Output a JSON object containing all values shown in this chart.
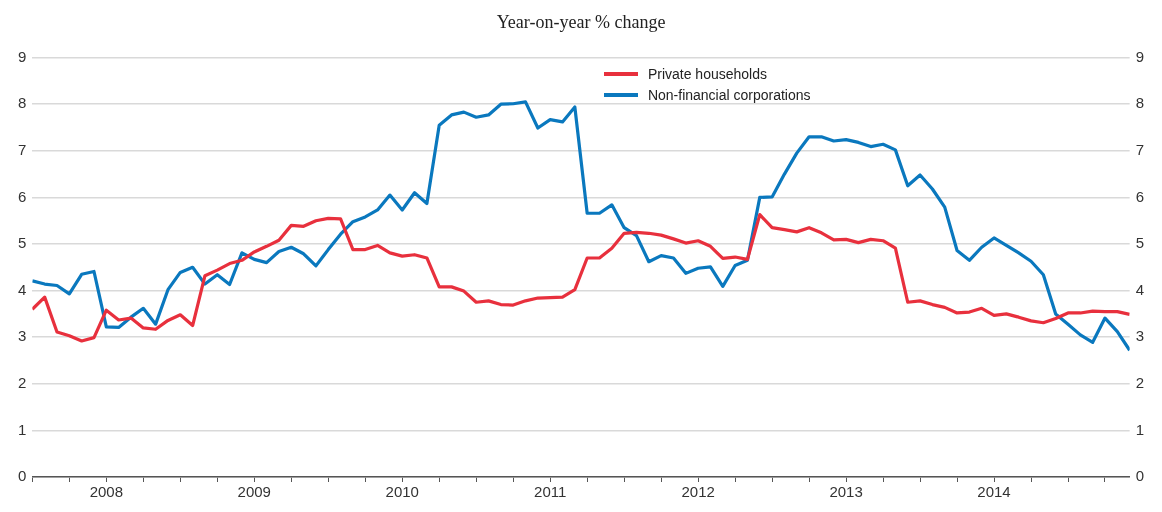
{
  "chart_data": {
    "type": "line",
    "title": "Year-on-year % change",
    "x": [
      "2008-01",
      "2008-02",
      "2008-03",
      "2008-04",
      "2008-05",
      "2008-06",
      "2008-07",
      "2008-08",
      "2008-09",
      "2008-10",
      "2008-11",
      "2008-12",
      "2009-01",
      "2009-02",
      "2009-03",
      "2009-04",
      "2009-05",
      "2009-06",
      "2009-07",
      "2009-08",
      "2009-09",
      "2009-10",
      "2009-11",
      "2009-12",
      "2010-01",
      "2010-02",
      "2010-03",
      "2010-04",
      "2010-05",
      "2010-06",
      "2010-07",
      "2010-08",
      "2010-09",
      "2010-10",
      "2010-11",
      "2010-12",
      "2011-01",
      "2011-02",
      "2011-03",
      "2011-04",
      "2011-05",
      "2011-06",
      "2011-07",
      "2011-08",
      "2011-09",
      "2011-10",
      "2011-11",
      "2011-12",
      "2012-01",
      "2012-02",
      "2012-03",
      "2012-04",
      "2012-05",
      "2012-06",
      "2012-07",
      "2012-08",
      "2012-09",
      "2012-10",
      "2012-11",
      "2012-12",
      "2013-01",
      "2013-02",
      "2013-03",
      "2013-04",
      "2013-05",
      "2013-06",
      "2013-07",
      "2013-08",
      "2013-09",
      "2013-10",
      "2013-11",
      "2013-12",
      "2014-01",
      "2014-02",
      "2014-03",
      "2014-04",
      "2014-05",
      "2014-06",
      "2014-07",
      "2014-08",
      "2014-09",
      "2014-10",
      "2014-11",
      "2014-12",
      "2015-01",
      "2015-02",
      "2015-03",
      "2015-04",
      "2015-05",
      "2015-06"
    ],
    "series": [
      {
        "name": "Private households",
        "color": "#e8303d",
        "values": [
          3.6,
          3.86,
          3.11,
          3.03,
          2.92,
          2.99,
          3.58,
          3.37,
          3.41,
          3.2,
          3.17,
          3.36,
          3.48,
          3.25,
          4.32,
          4.44,
          4.58,
          4.65,
          4.83,
          4.95,
          5.08,
          5.4,
          5.38,
          5.5,
          5.55,
          5.54,
          4.88,
          4.88,
          4.97,
          4.81,
          4.74,
          4.77,
          4.7,
          4.08,
          4.08,
          3.99,
          3.75,
          3.78,
          3.7,
          3.69,
          3.78,
          3.84,
          3.85,
          3.86,
          4.02,
          4.7,
          4.7,
          4.91,
          5.23,
          5.25,
          5.23,
          5.19,
          5.11,
          5.02,
          5.07,
          4.95,
          4.69,
          4.72,
          4.67,
          5.63,
          5.35,
          5.31,
          5.26,
          5.35,
          5.24,
          5.09,
          5.1,
          5.03,
          5.1,
          5.07,
          4.91,
          3.75,
          3.78,
          3.7,
          3.64,
          3.52,
          3.54,
          3.62,
          3.47,
          3.5,
          3.43,
          3.35,
          3.31,
          3.4,
          3.52,
          3.52,
          3.56,
          3.55,
          3.55,
          3.49
        ]
      },
      {
        "name": "Non-financial corporations",
        "color": "#0a78be",
        "values": [
          4.21,
          4.14,
          4.11,
          3.93,
          4.35,
          4.41,
          3.22,
          3.21,
          3.43,
          3.62,
          3.28,
          4.02,
          4.39,
          4.5,
          4.14,
          4.34,
          4.13,
          4.81,
          4.67,
          4.6,
          4.84,
          4.93,
          4.79,
          4.53,
          4.88,
          5.21,
          5.48,
          5.58,
          5.73,
          6.05,
          5.73,
          6.1,
          5.87,
          7.55,
          7.77,
          7.83,
          7.72,
          7.77,
          8.0,
          8.01,
          8.05,
          7.49,
          7.67,
          7.62,
          7.94,
          5.66,
          5.66,
          5.84,
          5.35,
          5.18,
          4.62,
          4.75,
          4.7,
          4.37,
          4.48,
          4.51,
          4.09,
          4.54,
          4.65,
          6.0,
          6.01,
          6.5,
          6.95,
          7.3,
          7.3,
          7.21,
          7.24,
          7.18,
          7.09,
          7.14,
          7.02,
          6.25,
          6.48,
          6.18,
          5.79,
          4.86,
          4.65,
          4.93,
          5.13,
          4.97,
          4.81,
          4.63,
          4.34,
          3.5,
          3.28,
          3.05,
          2.89,
          3.41,
          3.12,
          2.72
        ]
      }
    ],
    "xlim": [
      "2008-01",
      "2015-06"
    ],
    "xticks": [
      {
        "value": "2008-01",
        "label": null
      },
      {
        "value": "2008-04",
        "label": null
      },
      {
        "value": "2008-07",
        "label": "2008"
      },
      {
        "value": "2008-10",
        "label": null
      },
      {
        "value": "2009-01",
        "label": null
      },
      {
        "value": "2009-04",
        "label": null
      },
      {
        "value": "2009-07",
        "label": "2009"
      },
      {
        "value": "2009-10",
        "label": null
      },
      {
        "value": "2010-01",
        "label": null
      },
      {
        "value": "2010-04",
        "label": null
      },
      {
        "value": "2010-07",
        "label": "2010"
      },
      {
        "value": "2010-10",
        "label": null
      },
      {
        "value": "2011-01",
        "label": null
      },
      {
        "value": "2011-04",
        "label": null
      },
      {
        "value": "2011-07",
        "label": "2011"
      },
      {
        "value": "2011-10",
        "label": null
      },
      {
        "value": "2012-01",
        "label": null
      },
      {
        "value": "2012-04",
        "label": null
      },
      {
        "value": "2012-07",
        "label": "2012"
      },
      {
        "value": "2012-10",
        "label": null
      },
      {
        "value": "2013-01",
        "label": null
      },
      {
        "value": "2013-04",
        "label": null
      },
      {
        "value": "2013-07",
        "label": "2013"
      },
      {
        "value": "2013-10",
        "label": null
      },
      {
        "value": "2014-01",
        "label": null
      },
      {
        "value": "2014-04",
        "label": null
      },
      {
        "value": "2014-07",
        "label": "2014"
      },
      {
        "value": "2014-10",
        "label": null
      },
      {
        "value": "2015-01",
        "label": null
      },
      {
        "value": "2015-04",
        "label": null
      }
    ],
    "ylim": [
      0,
      9
    ],
    "yticks": [
      0,
      1,
      2,
      3,
      4,
      5,
      6,
      7,
      8,
      9
    ],
    "y2lim": [
      0,
      9
    ],
    "y2ticks": [
      0,
      1,
      2,
      3,
      4,
      5,
      6,
      7,
      8,
      9
    ],
    "grid": "y",
    "legend": "top"
  }
}
